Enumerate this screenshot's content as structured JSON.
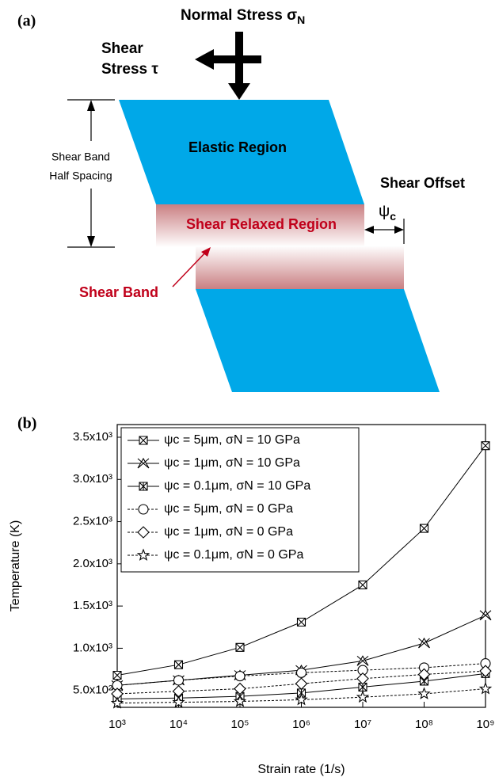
{
  "panel_a": {
    "label": "(a)",
    "normal_stress": "Normal Stress σ",
    "normal_stress_sub": "N",
    "shear_stress_lines": [
      "Shear",
      "Stress τ"
    ],
    "half_spacing_lines": [
      "Shear Band",
      "Half Spacing"
    ],
    "elastic_region": "Elastic Region",
    "shear_offset": "Shear Offset",
    "psi": "ψ",
    "psi_sub": "c",
    "shear_relaxed_region": "Shear Relaxed Region",
    "shear_band": "Shear Band"
  },
  "chart_data": {
    "type": "line",
    "panel_label": "(b)",
    "x_label": "Strain rate (1/s)",
    "y_label": "Temperature (K)",
    "x": [
      1000,
      10000,
      100000,
      1000000,
      10000000,
      100000000,
      1000000000
    ],
    "xlog": true,
    "xlim": [
      1000,
      1000000000
    ],
    "xticks": [
      {
        "value": 1000,
        "label": "10³"
      },
      {
        "value": 10000,
        "label": "10⁴"
      },
      {
        "value": 100000,
        "label": "10⁵"
      },
      {
        "value": 1000000,
        "label": "10⁶"
      },
      {
        "value": 10000000,
        "label": "10⁷"
      },
      {
        "value": 100000000,
        "label": "10⁸"
      },
      {
        "value": 1000000000,
        "label": "10⁹"
      }
    ],
    "ylim": [
      300,
      3650
    ],
    "yticks": [
      {
        "value": 500,
        "label": "5.0x10²"
      },
      {
        "value": 1000,
        "label": "1.0x10³"
      },
      {
        "value": 1500,
        "label": "1.5x10³"
      },
      {
        "value": 2000,
        "label": "2.0x10³"
      },
      {
        "value": 2500,
        "label": "2.5x10³"
      },
      {
        "value": 3000,
        "label": "3.0x10³"
      },
      {
        "value": 3500,
        "label": "3.5x10³"
      }
    ],
    "legend": "upper left",
    "series": [
      {
        "name": "ψc = 5μm, σN = 10 GPa",
        "color": "#000000",
        "marker": "square-x",
        "dash": "solid",
        "values": [
          680,
          805,
          1010,
          1310,
          1750,
          2420,
          3400
        ]
      },
      {
        "name": "ψc = 1μm, σN = 10 GPa",
        "color": "#000000",
        "marker": "triangle-x",
        "dash": "solid",
        "values": [
          560,
          620,
          680,
          740,
          850,
          1060,
          1390
        ]
      },
      {
        "name": "ψc = 0.1μm, σN = 10 GPa",
        "color": "#000000",
        "marker": "box-x",
        "dash": "solid",
        "values": [
          400,
          410,
          430,
          470,
          540,
          610,
          700
        ]
      },
      {
        "name": "ψc = 5μm, σN = 0 GPa",
        "color": "#000000",
        "marker": "circle",
        "dash": "dashed",
        "values": [
          560,
          620,
          670,
          710,
          740,
          770,
          820
        ]
      },
      {
        "name": "ψc = 1μm, σN = 0 GPa",
        "color": "#000000",
        "marker": "diamond",
        "dash": "dashed",
        "values": [
          460,
          490,
          520,
          580,
          640,
          690,
          730
        ]
      },
      {
        "name": "ψc = 0.1μm, σN = 0 GPa",
        "color": "#000000",
        "marker": "star",
        "dash": "dashed",
        "values": [
          350,
          360,
          370,
          390,
          420,
          460,
          520
        ]
      }
    ]
  }
}
